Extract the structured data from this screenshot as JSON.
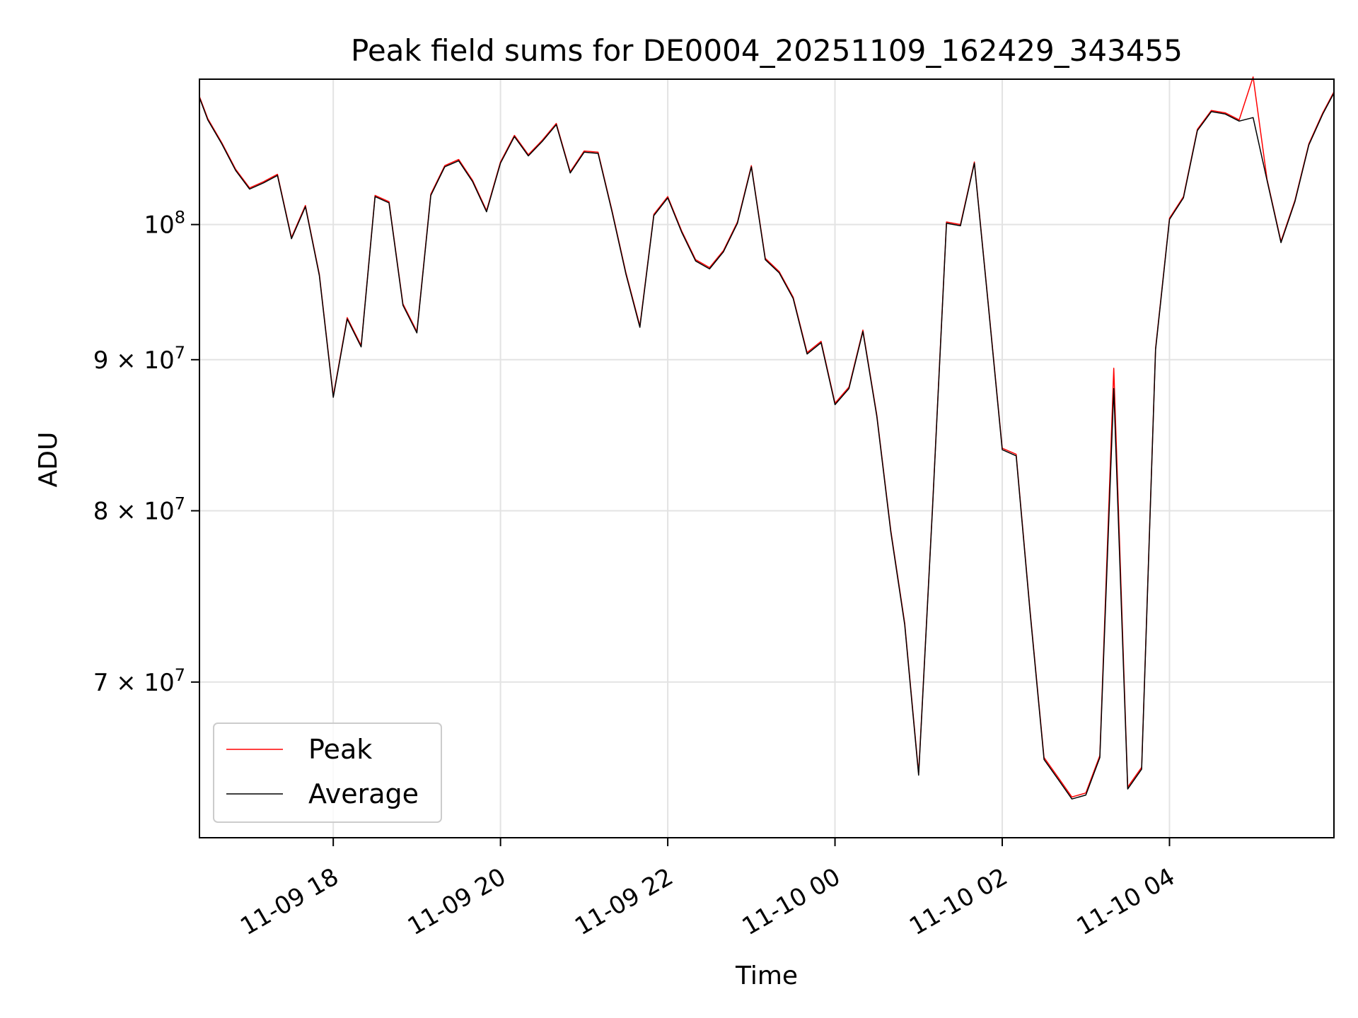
{
  "chart_data": {
    "type": "line",
    "title": "Peak field sums for DE0004_20251109_162429_343455",
    "xlabel": "Time",
    "ylabel": "ADU",
    "yscale": "log",
    "ylim": [
      62000000,
      112000000
    ],
    "xlim": [
      "2025-11-09 16:24",
      "2025-11-10 05:58"
    ],
    "grid": true,
    "legend": "lower-left",
    "x_ticks": [
      {
        "value": "2025-11-09 18:00",
        "label": "11-09 18"
      },
      {
        "value": "2025-11-09 20:00",
        "label": "11-09 20"
      },
      {
        "value": "2025-11-09 22:00",
        "label": "11-09 22"
      },
      {
        "value": "2025-11-10 00:00",
        "label": "11-10 00"
      },
      {
        "value": "2025-11-10 02:00",
        "label": "11-10 02"
      },
      {
        "value": "2025-11-10 04:00",
        "label": "11-10 04"
      }
    ],
    "y_ticks": [
      {
        "value": 100000000,
        "base": "10",
        "exp": "8"
      },
      {
        "value": 90000000,
        "base": "9 × 10",
        "exp": "7"
      },
      {
        "value": 80000000,
        "base": "8 × 10",
        "exp": "7"
      },
      {
        "value": 70000000,
        "base": "7 × 10",
        "exp": "7"
      }
    ],
    "x": [
      "2025-11-09 16:24",
      "2025-11-09 16:30",
      "2025-11-09 16:40",
      "2025-11-09 16:50",
      "2025-11-09 17:00",
      "2025-11-09 17:10",
      "2025-11-09 17:20",
      "2025-11-09 17:30",
      "2025-11-09 17:40",
      "2025-11-09 17:50",
      "2025-11-09 18:00",
      "2025-11-09 18:10",
      "2025-11-09 18:20",
      "2025-11-09 18:30",
      "2025-11-09 18:40",
      "2025-11-09 18:50",
      "2025-11-09 19:00",
      "2025-11-09 19:10",
      "2025-11-09 19:20",
      "2025-11-09 19:30",
      "2025-11-09 19:40",
      "2025-11-09 19:50",
      "2025-11-09 20:00",
      "2025-11-09 20:10",
      "2025-11-09 20:20",
      "2025-11-09 20:30",
      "2025-11-09 20:40",
      "2025-11-09 20:50",
      "2025-11-09 21:00",
      "2025-11-09 21:10",
      "2025-11-09 21:20",
      "2025-11-09 21:30",
      "2025-11-09 21:40",
      "2025-11-09 21:50",
      "2025-11-09 22:00",
      "2025-11-09 22:10",
      "2025-11-09 22:20",
      "2025-11-09 22:30",
      "2025-11-09 22:40",
      "2025-11-09 22:50",
      "2025-11-09 23:00",
      "2025-11-09 23:10",
      "2025-11-09 23:20",
      "2025-11-09 23:30",
      "2025-11-09 23:40",
      "2025-11-09 23:50",
      "2025-11-10 00:00",
      "2025-11-10 00:10",
      "2025-11-10 00:20",
      "2025-11-10 00:30",
      "2025-11-10 00:40",
      "2025-11-10 00:50",
      "2025-11-10 01:00",
      "2025-11-10 01:10",
      "2025-11-10 01:20",
      "2025-11-10 01:30",
      "2025-11-10 01:40",
      "2025-11-10 01:50",
      "2025-11-10 02:00",
      "2025-11-10 02:10",
      "2025-11-10 02:20",
      "2025-11-10 02:30",
      "2025-11-10 02:40",
      "2025-11-10 02:50",
      "2025-11-10 03:00",
      "2025-11-10 03:10",
      "2025-11-10 03:20",
      "2025-11-10 03:30",
      "2025-11-10 03:40",
      "2025-11-10 03:50",
      "2025-11-10 04:00",
      "2025-11-10 04:10",
      "2025-11-10 04:20",
      "2025-11-10 04:30",
      "2025-11-10 04:40",
      "2025-11-10 04:50",
      "2025-11-10 05:00",
      "2025-11-10 05:10",
      "2025-11-10 05:20",
      "2025-11-10 05:30",
      "2025-11-10 05:40",
      "2025-11-10 05:50",
      "2025-11-10 05:58"
    ],
    "series": [
      {
        "name": "Peak",
        "color": "#ff0000",
        "values": [
          110500000,
          108600000,
          106600000,
          104400000,
          102900000,
          103400000,
          104000000,
          99000000,
          101500000,
          96200000,
          87500000,
          93000000,
          91000000,
          102300000,
          101800000,
          94000000,
          92000000,
          102400000,
          104700000,
          105200000,
          103500000,
          101100000,
          105000000,
          107200000,
          105600000,
          106800000,
          108200000,
          104200000,
          105900000,
          105800000,
          101100000,
          96300000,
          92400000,
          100800000,
          102200000,
          99500000,
          97300000,
          96700000,
          98000000,
          100200000,
          104700000,
          97400000,
          96400000,
          94500000,
          90500000,
          91300000,
          87000000,
          88100000,
          92100000,
          86200000,
          78800000,
          73300000,
          65200000,
          80300000,
          100200000,
          100000000,
          105000000,
          94000000,
          84000000,
          83600000,
          74000000,
          66000000,
          65000000,
          64000000,
          64200000,
          66100000,
          89400000,
          64500000,
          65500000,
          90800000,
          100500000,
          102200000,
          107700000,
          109300000,
          109100000,
          108500000,
          112200000,
          103600000,
          98700000,
          101900000,
          106500000,
          109100000,
          110900000
        ]
      },
      {
        "name": "Average",
        "color": "#000000",
        "values": [
          110400000,
          108500000,
          106500000,
          104300000,
          102800000,
          103300000,
          103900000,
          98900000,
          101400000,
          96100000,
          87400000,
          92900000,
          90900000,
          102200000,
          101700000,
          93900000,
          91900000,
          102300000,
          104600000,
          105100000,
          103400000,
          101000000,
          104900000,
          107100000,
          105500000,
          106700000,
          108100000,
          104100000,
          105800000,
          105700000,
          101000000,
          96200000,
          92300000,
          100700000,
          102100000,
          99400000,
          97200000,
          96600000,
          97900000,
          100100000,
          104600000,
          97300000,
          96300000,
          94400000,
          90400000,
          91200000,
          86900000,
          88000000,
          92000000,
          86100000,
          78700000,
          73200000,
          65100000,
          80200000,
          100100000,
          99900000,
          104900000,
          93900000,
          83900000,
          83500000,
          73900000,
          65900000,
          64900000,
          63900000,
          64100000,
          66000000,
          88000000,
          64400000,
          65400000,
          90700000,
          100400000,
          102100000,
          107600000,
          109200000,
          109000000,
          108400000,
          108700000,
          103500000,
          98600000,
          101800000,
          106400000,
          109000000,
          110800000
        ]
      }
    ]
  }
}
